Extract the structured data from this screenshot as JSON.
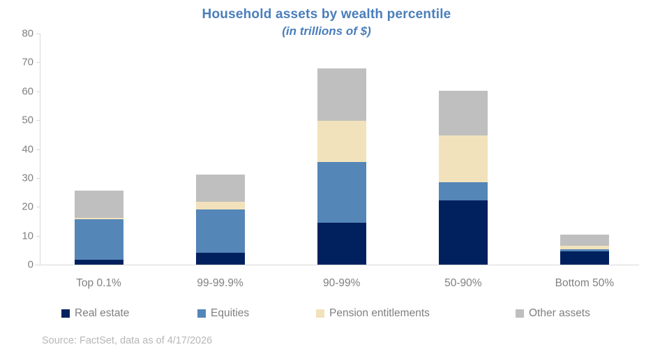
{
  "title": "Household assets by wealth percentile",
  "subtitle": "(in trillions of $)",
  "source_note": "Source: FactSet, data as of 4/17/2026",
  "colors": {
    "title_text": "#4a7ebb",
    "axis_text": "#808080",
    "axis_line": "#d9d9d9",
    "legend_text": "#7f7f7f",
    "source_text": "#b7b7b7",
    "real_estate": "#00215e",
    "equities": "#5486b8",
    "pension_entitlements": "#f2e2bb",
    "other_assets": "#bfbfbf"
  },
  "chart_data": {
    "type": "bar",
    "stacked": true,
    "title": "Household assets by wealth percentile",
    "subtitle": "(in trillions of $)",
    "xlabel": "",
    "ylabel": "",
    "ylim": [
      0,
      80
    ],
    "yticks": [
      0,
      10,
      20,
      30,
      40,
      50,
      60,
      70,
      80
    ],
    "grid": false,
    "legend_position": "bottom",
    "categories": [
      "Top 0.1%",
      "99-99.9%",
      "90-99%",
      "50-90%",
      "Bottom 50%"
    ],
    "series": [
      {
        "name": "Real estate",
        "color": "#00215e",
        "values": [
          1.7,
          4.2,
          14.4,
          22.2,
          4.6
        ]
      },
      {
        "name": "Equities",
        "color": "#5486b8",
        "values": [
          14.1,
          14.8,
          21.2,
          6.4,
          0.7
        ]
      },
      {
        "name": "Pension entitlements",
        "color": "#f2e2bb",
        "values": [
          0.5,
          2.7,
          14.3,
          16.1,
          1.3
        ]
      },
      {
        "name": "Other assets",
        "color": "#bfbfbf",
        "values": [
          9.4,
          9.5,
          18.0,
          15.5,
          3.7
        ]
      }
    ],
    "totals": [
      25.7,
      31.2,
      67.9,
      60.2,
      10.3
    ]
  },
  "legend": {
    "items": [
      {
        "label": "Real estate",
        "color": "#00215e"
      },
      {
        "label": "Equities",
        "color": "#5486b8"
      },
      {
        "label": "Pension entitlements",
        "color": "#f2e2bb"
      },
      {
        "label": "Other assets",
        "color": "#bfbfbf"
      }
    ]
  }
}
